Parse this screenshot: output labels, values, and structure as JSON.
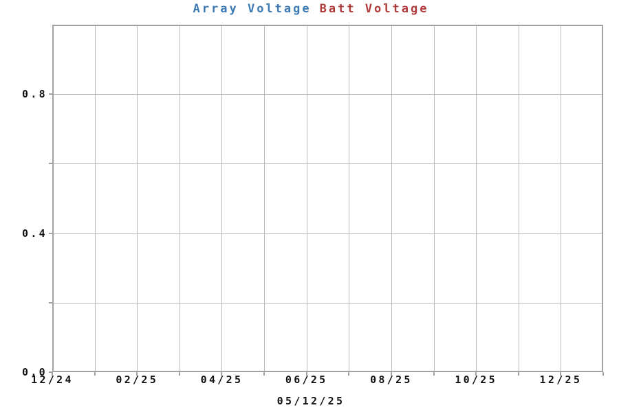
{
  "title": {
    "series1_label": "Array Voltage",
    "series2_label": "Batt Voltage"
  },
  "colors": {
    "series1": "#3d7ab4",
    "series2": "#b03b3b",
    "gridline": "#b9b9b9",
    "frame": "#a2a2a2",
    "text": "#111111",
    "background": "#ffffff"
  },
  "chart_data": {
    "type": "line",
    "title": "Array Voltage Batt Voltage",
    "series": [
      {
        "name": "Array Voltage",
        "color": "#3d7ab4",
        "x": [],
        "values": []
      },
      {
        "name": "Batt Voltage",
        "color": "#b03b3b",
        "x": [],
        "values": []
      }
    ],
    "x_axis": {
      "label": "05/12/25",
      "tick_labels": [
        "12/24",
        "02/25",
        "04/25",
        "06/25",
        "08/25",
        "10/25",
        "12/25"
      ],
      "gridline_intervals": 13,
      "gridlines_per_label": 2
    },
    "y_axis": {
      "label": "",
      "tick_labels": [
        "0.0",
        "0.4",
        "0.8"
      ],
      "tick_values": [
        0.0,
        0.4,
        0.8
      ],
      "lim": [
        0.0,
        1.0
      ],
      "gridline_step": 0.2
    },
    "grid": true,
    "legend_position": "top-center",
    "plot_is_empty": true
  }
}
